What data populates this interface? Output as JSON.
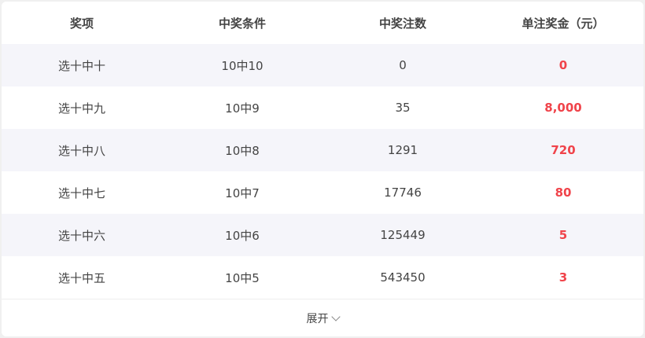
{
  "table": {
    "headers": [
      "奖项",
      "中奖条件",
      "中奖注数",
      "单注奖金（元）"
    ],
    "rows": [
      [
        "选十中十",
        "10中10",
        "0",
        "0"
      ],
      [
        "选十中九",
        "10中9",
        "35",
        "8,000"
      ],
      [
        "选十中八",
        "10中8",
        "1291",
        "720"
      ],
      [
        "选十中七",
        "10中7",
        "17746",
        "80"
      ],
      [
        "选十中六",
        "10中6",
        "125449",
        "5"
      ],
      [
        "选十中五",
        "10中5",
        "543450",
        "3"
      ]
    ]
  },
  "footer": {
    "expand_label": "展开",
    "icon": "chevron-down-icon"
  },
  "colors": {
    "prize": "#f0434a",
    "alt_row": "#f5f5fa"
  }
}
